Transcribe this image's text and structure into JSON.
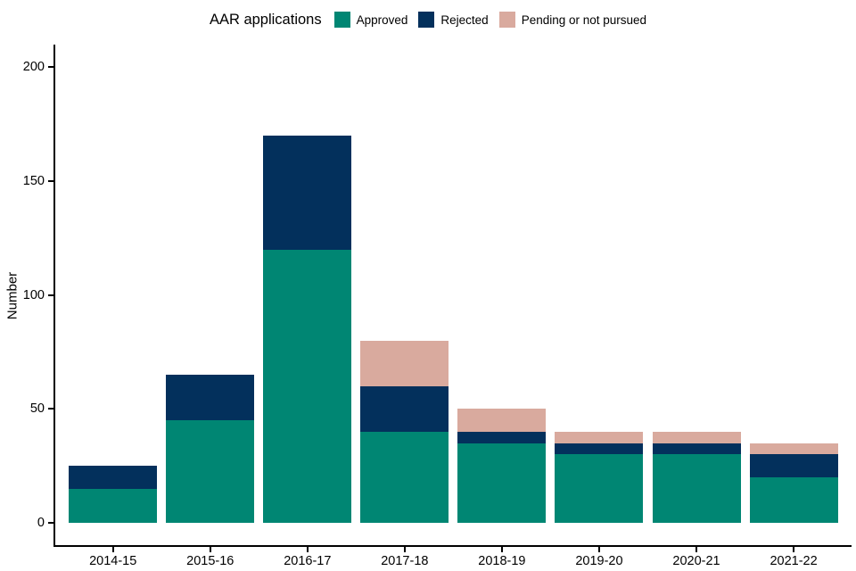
{
  "chart_data": {
    "type": "bar",
    "stacked": true,
    "title": "AAR applications",
    "xlabel": "",
    "ylabel": "Number",
    "categories": [
      "2014-15",
      "2015-16",
      "2016-17",
      "2017-18",
      "2018-19",
      "2019-20",
      "2020-21",
      "2021-22"
    ],
    "series": [
      {
        "name": "Approved",
        "color": "#008673",
        "values": [
          15,
          45,
          120,
          40,
          35,
          30,
          30,
          20
        ]
      },
      {
        "name": "Rejected",
        "color": "#03305c",
        "values": [
          10,
          20,
          50,
          20,
          5,
          5,
          5,
          10
        ]
      },
      {
        "name": "Pending or not pursued",
        "color": "#d9aa9e",
        "values": [
          0,
          0,
          0,
          20,
          10,
          5,
          5,
          5
        ]
      }
    ],
    "totals": [
      25,
      65,
      170,
      80,
      50,
      40,
      40,
      35
    ],
    "ylim": [
      0,
      210
    ],
    "yticks": [
      0,
      50,
      100,
      150,
      200
    ],
    "grid": false,
    "legend_position": "top"
  }
}
